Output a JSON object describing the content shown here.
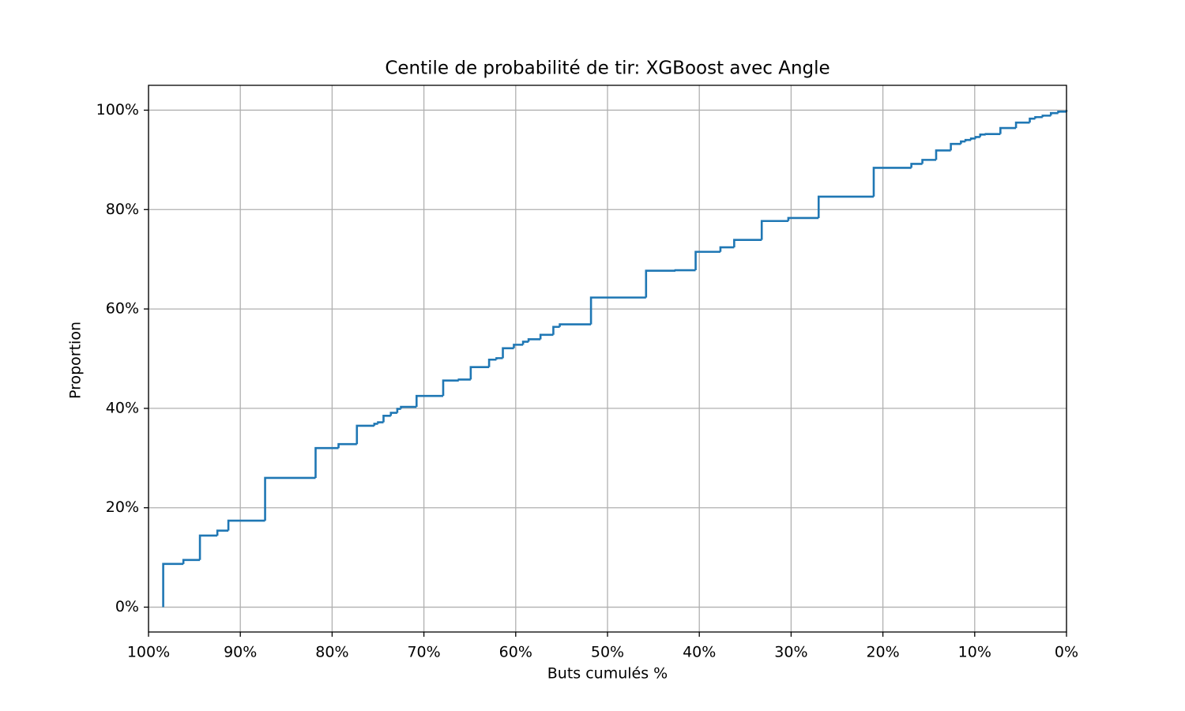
{
  "chart_data": {
    "type": "step",
    "title": "Centile de probabilité de tir: XGBoost avec Angle",
    "xlabel": "Buts cumulés %",
    "ylabel": "Proportion",
    "series": [
      {
        "color": "#1f77b4",
        "x": [
          98.4,
          98.4,
          96.2,
          94.4,
          92.5,
          91.3,
          87.3,
          81.8,
          79.3,
          77.3,
          75.4,
          75.0,
          74.4,
          73.6,
          72.9,
          72.5,
          70.8,
          67.9,
          66.2,
          64.9,
          62.9,
          62.1,
          61.4,
          60.2,
          59.2,
          58.6,
          57.3,
          55.9,
          55.2,
          51.8,
          45.8,
          42.6,
          40.4,
          37.7,
          36.2,
          33.2,
          30.3,
          27.0,
          21.0,
          16.9,
          15.7,
          14.2,
          12.6,
          11.5,
          11.0,
          10.4,
          9.9,
          9.4,
          8.8,
          7.2,
          5.5,
          4.0,
          3.4,
          2.6,
          1.7,
          0.9,
          0
        ],
        "values": [
          0,
          8.7,
          9.5,
          14.4,
          15.4,
          17.4,
          26.0,
          32.0,
          32.8,
          36.5,
          36.9,
          37.2,
          38.5,
          39.1,
          39.9,
          40.3,
          42.5,
          45.6,
          45.8,
          48.3,
          49.8,
          50.1,
          52.1,
          52.8,
          53.4,
          53.9,
          54.8,
          56.4,
          56.9,
          62.3,
          67.7,
          67.8,
          71.5,
          72.4,
          73.9,
          77.7,
          78.3,
          82.6,
          88.4,
          89.2,
          90.0,
          91.9,
          93.2,
          93.7,
          94.0,
          94.3,
          94.6,
          95.1,
          95.2,
          96.4,
          97.5,
          98.3,
          98.6,
          98.9,
          99.4,
          99.7,
          100
        ]
      }
    ],
    "xlim": [
      100,
      0
    ],
    "ylim": [
      -5,
      105
    ],
    "xticks": [
      {
        "value": 100,
        "label": "100%"
      },
      {
        "value": 90,
        "label": "90%"
      },
      {
        "value": 80,
        "label": "80%"
      },
      {
        "value": 70,
        "label": "70%"
      },
      {
        "value": 60,
        "label": "60%"
      },
      {
        "value": 50,
        "label": "50%"
      },
      {
        "value": 40,
        "label": "40%"
      },
      {
        "value": 30,
        "label": "30%"
      },
      {
        "value": 20,
        "label": "20%"
      },
      {
        "value": 10,
        "label": "10%"
      },
      {
        "value": 0,
        "label": "0%"
      }
    ],
    "yticks": [
      {
        "value": 0,
        "label": "0%"
      },
      {
        "value": 20,
        "label": "20%"
      },
      {
        "value": 40,
        "label": "40%"
      },
      {
        "value": 60,
        "label": "60%"
      },
      {
        "value": 80,
        "label": "80%"
      },
      {
        "value": 100,
        "label": "100%"
      }
    ],
    "grid": true
  }
}
